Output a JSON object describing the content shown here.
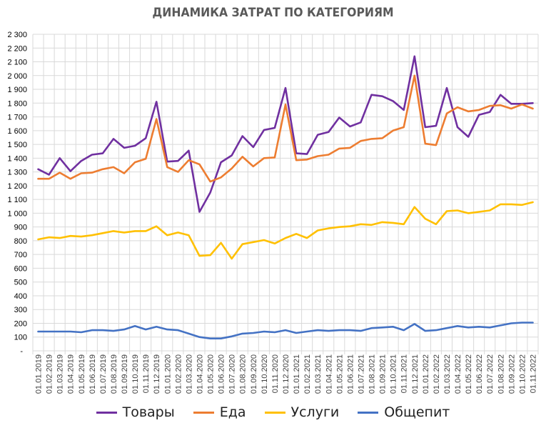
{
  "chart_data": {
    "type": "line",
    "title": "ДИНАМИКА ЗАТРАТ ПО КАТЕГОРИЯМ",
    "xlabel": "",
    "ylabel": "",
    "ylim": [
      0,
      2300
    ],
    "yticks": [
      0,
      100,
      200,
      300,
      400,
      500,
      600,
      700,
      800,
      900,
      1000,
      1100,
      1200,
      1300,
      1400,
      1500,
      1600,
      1700,
      1800,
      1900,
      2000,
      2100,
      2200,
      2300
    ],
    "ytick_labels": [
      "-",
      "100",
      "200",
      "300",
      "400",
      "500",
      "600",
      "700",
      "800",
      "900",
      "1 000",
      "1 100",
      "1 200",
      "1 300",
      "1 400",
      "1 500",
      "1 600",
      "1 700",
      "1 800",
      "1 900",
      "2 000",
      "2 100",
      "2 200",
      "2 300"
    ],
    "grid": {
      "horizontal": true,
      "vertical": true
    },
    "legend_position": "bottom",
    "categories": [
      "01.01.2019",
      "01.02.2019",
      "01.03.2019",
      "01.04.2019",
      "01.05.2019",
      "01.06.2019",
      "01.07.2019",
      "01.08.2019",
      "01.09.2019",
      "01.10.2019",
      "01.11.2019",
      "01.12.2019",
      "01.01.2020",
      "01.02.2020",
      "01.03.2020",
      "01.04.2020",
      "01.05.2020",
      "01.06.2020",
      "01.07.2020",
      "01.08.2020",
      "01.09.2020",
      "01.10.2020",
      "01.11.2020",
      "01.12.2020",
      "01.01.2021",
      "01.02.2021",
      "01.03.2021",
      "01.04.2021",
      "01.05.2021",
      "01.06.2021",
      "01.07.2021",
      "01.08.2021",
      "01.09.2021",
      "01.10.2021",
      "01.11.2021",
      "01.12.2021",
      "01.01.2022",
      "01.02.2022",
      "01.03.2022",
      "01.04.2022",
      "01.05.2022",
      "01.06.2022",
      "01.07.2022",
      "01.08.2022",
      "01.09.2022",
      "01.10.2022",
      "01.11.2022"
    ],
    "series": [
      {
        "name": "Товары",
        "color": "#7030A0",
        "values": [
          1320,
          1280,
          1400,
          1305,
          1380,
          1425,
          1435,
          1540,
          1475,
          1490,
          1545,
          1810,
          1375,
          1380,
          1455,
          1010,
          1150,
          1370,
          1420,
          1560,
          1480,
          1605,
          1620,
          1910,
          1435,
          1430,
          1570,
          1590,
          1695,
          1630,
          1660,
          1860,
          1850,
          1815,
          1750,
          2140,
          1625,
          1635,
          1910,
          1625,
          1555,
          1715,
          1735,
          1860,
          1795,
          1795,
          1800
        ]
      },
      {
        "name": "Еда",
        "color": "#ED7D31",
        "values": [
          1250,
          1250,
          1295,
          1250,
          1290,
          1295,
          1320,
          1335,
          1290,
          1370,
          1395,
          1685,
          1335,
          1300,
          1385,
          1355,
          1230,
          1260,
          1325,
          1410,
          1340,
          1400,
          1405,
          1790,
          1385,
          1390,
          1415,
          1425,
          1470,
          1475,
          1525,
          1540,
          1545,
          1600,
          1625,
          2000,
          1505,
          1495,
          1725,
          1770,
          1740,
          1750,
          1780,
          1785,
          1760,
          1790,
          1760
        ]
      },
      {
        "name": "Услуги",
        "color": "#FFC000",
        "values": [
          810,
          825,
          820,
          835,
          830,
          840,
          855,
          870,
          860,
          870,
          870,
          905,
          840,
          860,
          840,
          690,
          695,
          785,
          670,
          775,
          790,
          805,
          780,
          820,
          850,
          820,
          875,
          890,
          900,
          905,
          920,
          915,
          935,
          930,
          920,
          1045,
          960,
          920,
          1015,
          1020,
          1000,
          1010,
          1020,
          1065,
          1065,
          1060,
          1080
        ]
      },
      {
        "name": "Общепит",
        "color": "#4472C4",
        "values": [
          140,
          140,
          140,
          140,
          135,
          150,
          150,
          145,
          155,
          180,
          155,
          175,
          155,
          150,
          125,
          100,
          90,
          90,
          105,
          125,
          130,
          140,
          135,
          150,
          130,
          140,
          150,
          145,
          150,
          150,
          145,
          165,
          170,
          175,
          150,
          195,
          145,
          150,
          165,
          180,
          170,
          175,
          170,
          185,
          200,
          205,
          205
        ]
      }
    ]
  },
  "legend": {
    "items": [
      {
        "label": "Товары",
        "color": "#7030A0"
      },
      {
        "label": "Еда",
        "color": "#ED7D31"
      },
      {
        "label": "Услуги",
        "color": "#FFC000"
      },
      {
        "label": "Общепит",
        "color": "#4472C4"
      }
    ]
  },
  "style": {
    "grid_color": "#D9D9D9",
    "axis_text_color": "#000000",
    "title_color": "#595959"
  }
}
